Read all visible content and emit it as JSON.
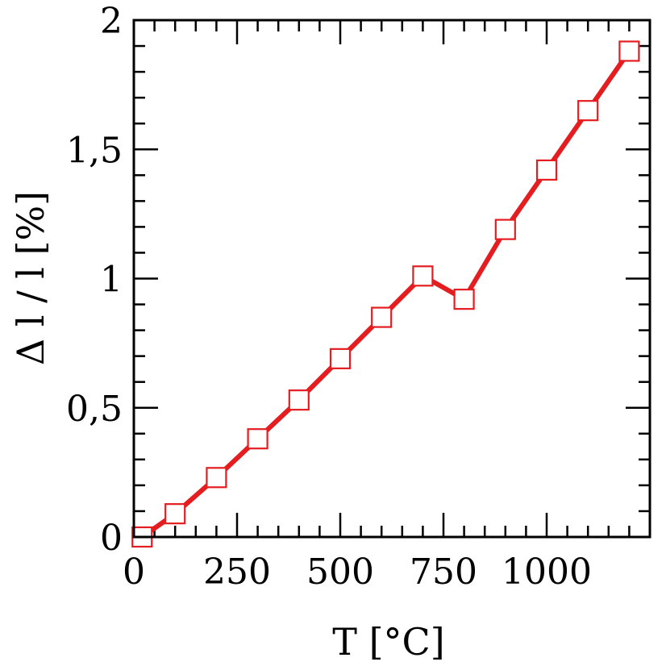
{
  "chart_data": {
    "type": "line",
    "title": "",
    "xlabel": "T [°C]",
    "ylabel": "Δ l / l [%]",
    "xlim": [
      0,
      1250
    ],
    "ylim": [
      0,
      2
    ],
    "x_ticks": [
      0,
      250,
      500,
      750,
      1000
    ],
    "x_tick_labels": [
      "0",
      "250",
      "500",
      "750",
      "1000"
    ],
    "y_ticks": [
      0,
      0.5,
      1,
      1.5,
      2
    ],
    "y_tick_labels": [
      "0",
      "0,5",
      "1",
      "1,5",
      "2"
    ],
    "x_minor_step": 50,
    "y_minor_step": 0.1,
    "grid": false,
    "color": "#e41e20",
    "marker": "open-square",
    "series": [
      {
        "x": [
          20,
          100,
          200,
          300,
          400,
          500,
          600,
          700,
          800,
          900,
          1000,
          1100,
          1200
        ],
        "y": [
          0,
          0.09,
          0.23,
          0.38,
          0.53,
          0.69,
          0.85,
          1.01,
          0.92,
          1.19,
          1.42,
          1.65,
          1.88
        ]
      }
    ]
  }
}
